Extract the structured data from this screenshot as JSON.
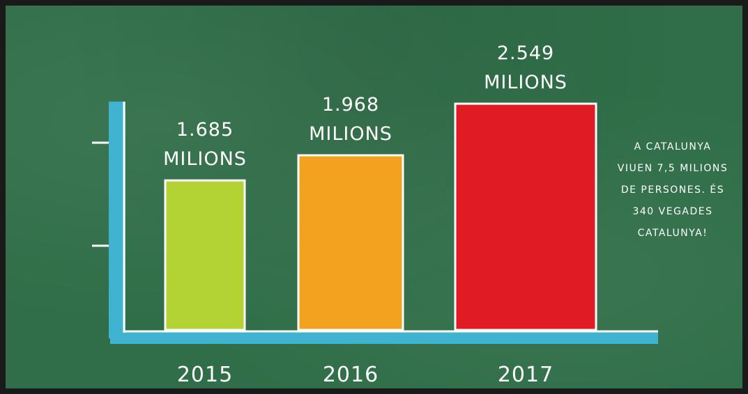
{
  "chart_data": {
    "type": "bar",
    "categories": [
      "2015",
      "2016",
      "2017"
    ],
    "values": [
      1685,
      1968,
      2549
    ],
    "unit": "MILIONS",
    "data_labels": [
      {
        "value": "1.685",
        "unit": "MILIONS"
      },
      {
        "value": "1.968",
        "unit": "MILIONS"
      },
      {
        "value": "2.549",
        "unit": "MILIONS"
      }
    ],
    "colors": [
      "#b3d334",
      "#f2a21f",
      "#e01b24"
    ],
    "axis_color": "#3fb3cf",
    "background": "#2f6e48",
    "ylim": [
      0,
      2549
    ],
    "grid": false,
    "legend": "none"
  },
  "annotation": {
    "lines": [
      "A CATALUNYA",
      "VIUEN 7,5 MILIONS",
      "DE PERSONES. ÉS",
      "340 VEGADES",
      "CATALUNYA!"
    ]
  }
}
